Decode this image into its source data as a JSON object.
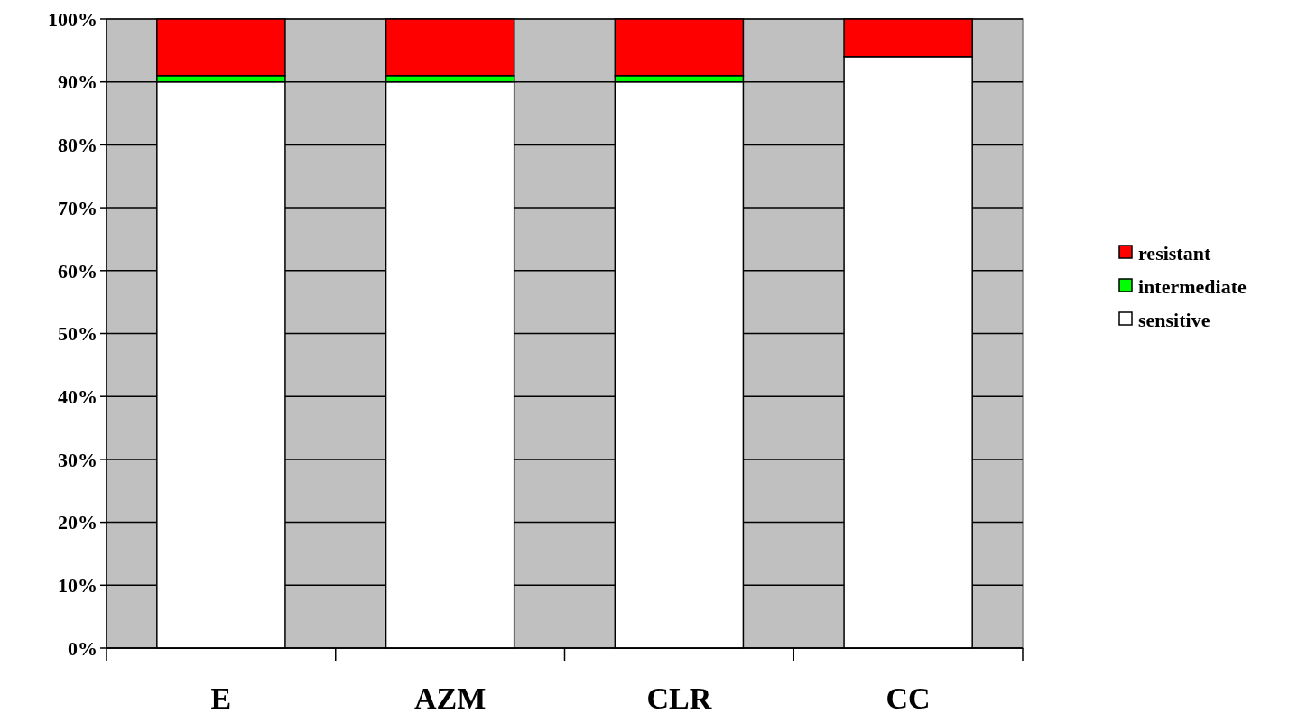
{
  "chart_data": {
    "type": "bar",
    "stacked": true,
    "categories": [
      "E",
      "AZM",
      "CLR",
      "CC"
    ],
    "series": [
      {
        "name": "sensitive",
        "color": "#ffffff",
        "values": [
          90,
          90,
          90,
          94
        ]
      },
      {
        "name": "intermediate",
        "color": "#00ff00",
        "values": [
          1,
          1,
          1,
          0
        ]
      },
      {
        "name": "resistant",
        "color": "#ff0000",
        "values": [
          9,
          9,
          9,
          6
        ]
      }
    ],
    "ylim": [
      0,
      100
    ],
    "yticks": [
      {
        "value": 0,
        "label": "0%"
      },
      {
        "value": 10,
        "label": "10%"
      },
      {
        "value": 20,
        "label": "20%"
      },
      {
        "value": 30,
        "label": "30%"
      },
      {
        "value": 40,
        "label": "40%"
      },
      {
        "value": 50,
        "label": "50%"
      },
      {
        "value": 60,
        "label": "60%"
      },
      {
        "value": 70,
        "label": "70%"
      },
      {
        "value": 80,
        "label": "80%"
      },
      {
        "value": 90,
        "label": "90%"
      },
      {
        "value": 100,
        "label": "100%"
      }
    ],
    "grid": "y",
    "legend": "right"
  }
}
